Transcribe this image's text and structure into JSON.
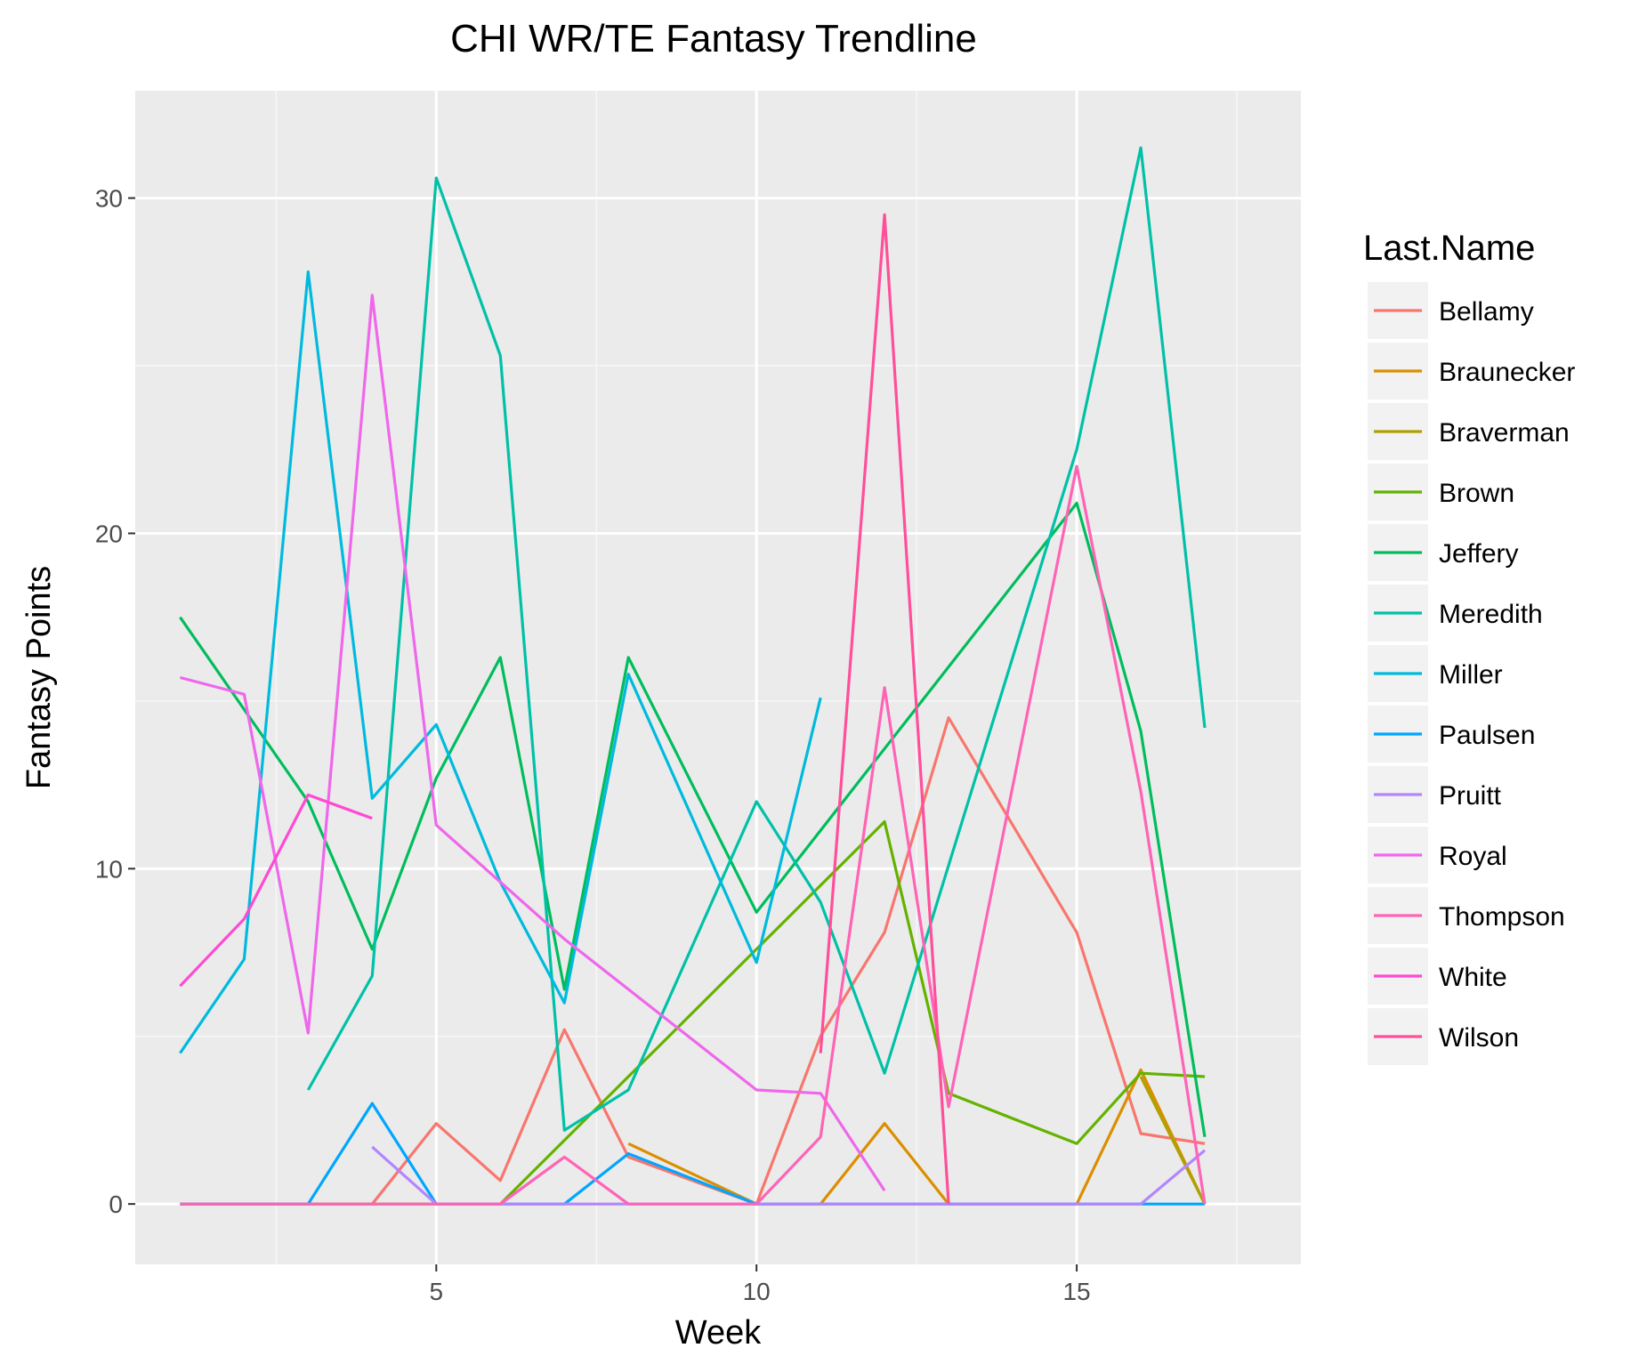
{
  "chart_data": {
    "type": "line",
    "title": "CHI WR/TE Fantasy Trendline",
    "xlabel": "Week",
    "ylabel": "Fantasy Points",
    "xlim": [
      0.3,
      18.5
    ],
    "ylim": [
      -1.8,
      33.2
    ],
    "x_ticks": [
      5,
      10,
      15
    ],
    "y_ticks": [
      0,
      10,
      20,
      30
    ],
    "grid": true,
    "legend": {
      "title": "Last.Name",
      "position": "right"
    },
    "series": [
      {
        "name": "Bellamy",
        "color": "#F8766D",
        "points": [
          [
            1,
            0
          ],
          [
            2,
            0
          ],
          [
            3,
            0
          ],
          [
            4,
            0
          ],
          [
            5,
            2.4
          ],
          [
            6,
            0.7
          ],
          [
            7,
            5.2
          ],
          [
            8,
            1.4
          ],
          [
            10,
            0
          ],
          [
            11,
            5
          ],
          [
            12,
            8.1
          ],
          [
            13,
            14.5
          ],
          [
            15,
            8.1
          ],
          [
            16,
            2.1
          ],
          [
            17,
            1.8
          ]
        ]
      },
      {
        "name": "Braunecker",
        "color": "#DB8E00",
        "points": [
          [
            8,
            1.8
          ],
          [
            10,
            0
          ],
          [
            11,
            0
          ],
          [
            12,
            2.4
          ],
          [
            13,
            0
          ],
          [
            15,
            0
          ],
          [
            16,
            4
          ],
          [
            17,
            0
          ]
        ]
      },
      {
        "name": "Braverman",
        "color": "#AEA200",
        "points": [
          [
            16,
            3.8
          ],
          [
            17,
            0
          ]
        ]
      },
      {
        "name": "Brown",
        "color": "#64B200",
        "points": [
          [
            1,
            0
          ],
          [
            2,
            0
          ],
          [
            3,
            0
          ],
          [
            4,
            0
          ],
          [
            5,
            0
          ],
          [
            6,
            0
          ],
          [
            12,
            11.4
          ],
          [
            13,
            3.3
          ],
          [
            15,
            1.8
          ],
          [
            16,
            3.9
          ],
          [
            17,
            3.8
          ]
        ]
      },
      {
        "name": "Jeffery",
        "color": "#00BD5C",
        "points": [
          [
            1,
            17.5
          ],
          [
            3,
            12
          ],
          [
            4,
            7.6
          ],
          [
            5,
            12.7
          ],
          [
            6,
            16.3
          ],
          [
            7,
            6.4
          ],
          [
            8,
            16.3
          ],
          [
            10,
            8.7
          ],
          [
            15,
            20.9
          ],
          [
            16,
            14.1
          ],
          [
            17,
            2
          ]
        ]
      },
      {
        "name": "Meredith",
        "color": "#00C1A7",
        "points": [
          [
            3,
            3.4
          ],
          [
            4,
            6.8
          ],
          [
            5,
            30.6
          ],
          [
            6,
            25.3
          ],
          [
            7,
            2.2
          ],
          [
            8,
            3.4
          ],
          [
            10,
            12
          ],
          [
            11,
            9
          ],
          [
            12,
            3.9
          ],
          [
            15,
            22.5
          ],
          [
            16,
            31.5
          ],
          [
            17,
            14.2
          ]
        ]
      },
      {
        "name": "Miller",
        "color": "#00BADE",
        "points": [
          [
            1,
            4.5
          ],
          [
            2,
            7.3
          ],
          [
            3,
            27.8
          ],
          [
            4,
            12.1
          ],
          [
            5,
            14.3
          ],
          [
            6,
            9.6
          ],
          [
            7,
            6
          ],
          [
            8,
            15.8
          ],
          [
            10,
            7.2
          ],
          [
            11,
            15.1
          ]
        ]
      },
      {
        "name": "Paulsen",
        "color": "#00A6FF",
        "points": [
          [
            1,
            0
          ],
          [
            2,
            0
          ],
          [
            3,
            0
          ],
          [
            4,
            3
          ],
          [
            5,
            0
          ],
          [
            6,
            0
          ],
          [
            7,
            0
          ],
          [
            8,
            1.5
          ],
          [
            10,
            0
          ],
          [
            11,
            0
          ],
          [
            12,
            0
          ],
          [
            13,
            0
          ],
          [
            15,
            0
          ],
          [
            16,
            0
          ],
          [
            17,
            0
          ]
        ]
      },
      {
        "name": "Pruitt",
        "color": "#B385FF",
        "points": [
          [
            4,
            1.7
          ],
          [
            5,
            0
          ],
          [
            6,
            0
          ],
          [
            7,
            0
          ],
          [
            8,
            0
          ],
          [
            10,
            0
          ],
          [
            11,
            0
          ],
          [
            12,
            0
          ],
          [
            13,
            0
          ],
          [
            15,
            0
          ],
          [
            16,
            0
          ],
          [
            17,
            1.6
          ]
        ]
      },
      {
        "name": "Royal",
        "color": "#EF67EB",
        "points": [
          [
            1,
            15.7
          ],
          [
            2,
            15.2
          ],
          [
            3,
            5.1
          ],
          [
            4,
            27.1
          ],
          [
            5,
            11.3
          ],
          [
            7,
            7.9
          ],
          [
            10,
            3.4
          ],
          [
            11,
            3.3
          ],
          [
            12,
            0.4
          ]
        ]
      },
      {
        "name": "Thompson",
        "color": "#FF63B6",
        "points": [
          [
            1,
            0
          ],
          [
            2,
            0
          ],
          [
            3,
            0
          ],
          [
            4,
            0
          ],
          [
            5,
            0
          ],
          [
            6,
            0
          ],
          [
            7,
            1.4
          ],
          [
            8,
            0
          ],
          [
            10,
            0
          ],
          [
            11,
            2
          ],
          [
            12,
            15.4
          ],
          [
            13,
            2.9
          ],
          [
            15,
            22
          ],
          [
            16,
            12.3
          ],
          [
            17,
            0
          ]
        ]
      },
      {
        "name": "White",
        "color": "#FF4AD2",
        "points": [
          [
            1,
            6.5
          ],
          [
            2,
            8.5
          ],
          [
            3,
            12.2
          ],
          [
            4,
            11.5
          ]
        ]
      },
      {
        "name": "Wilson",
        "color": "#FF4F9A",
        "points": [
          [
            11,
            4.5
          ],
          [
            12,
            29.5
          ],
          [
            13,
            0
          ]
        ]
      }
    ]
  }
}
